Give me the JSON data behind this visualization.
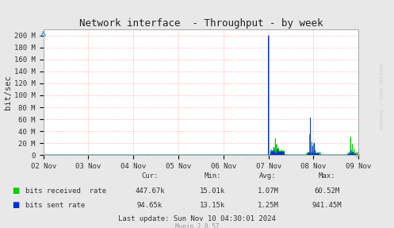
{
  "title": "Network interface  - Throughput - by week",
  "ylabel": "bit/sec",
  "background_color": "#e8e8e8",
  "plot_bg_color": "#ffffff",
  "grid_color": "#ff9999",
  "title_color": "#222222",
  "text_color": "#333333",
  "watermark": "RRDTOOL / TOBI OETIKER",
  "munin_version": "Munin 2.0.57",
  "last_update": "Last update: Sun Nov 10 04:30:01 2024",
  "ytick_labels": [
    "0",
    "20 M",
    "40 M",
    "60 M",
    "80 M",
    "100 M",
    "120 M",
    "140 M",
    "160 M",
    "180 M",
    "200 M"
  ],
  "ytick_values": [
    0,
    20000000,
    40000000,
    60000000,
    80000000,
    100000000,
    120000000,
    140000000,
    160000000,
    180000000,
    200000000
  ],
  "ylim": [
    0,
    210000000
  ],
  "xlim": [
    0,
    7
  ],
  "xtick_positions": [
    0,
    1,
    2,
    3,
    4,
    5,
    6,
    7
  ],
  "xtick_labels": [
    "02 Nov",
    "03 Nov",
    "04 Nov",
    "05 Nov",
    "06 Nov",
    "07 Nov",
    "08 Nov",
    "09 Nov"
  ],
  "green_color": "#00cc00",
  "blue_color": "#0033cc",
  "legend_labels": [
    "bits received  rate",
    "bits sent rate"
  ],
  "stats_headers": [
    "Cur:",
    "Min:",
    "Avg:",
    "Max:"
  ],
  "stats_green": [
    "447.67k",
    "15.01k",
    "1.07M",
    "60.52M"
  ],
  "stats_blue": [
    "94.65k",
    "13.15k",
    "1.25M",
    "941.45M"
  ]
}
